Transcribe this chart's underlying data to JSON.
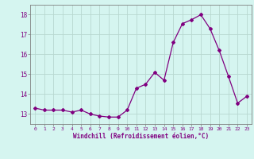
{
  "x": [
    0,
    1,
    2,
    3,
    4,
    5,
    6,
    7,
    8,
    9,
    10,
    11,
    12,
    13,
    14,
    15,
    16,
    17,
    18,
    19,
    20,
    21,
    22,
    23
  ],
  "y": [
    13.3,
    13.2,
    13.2,
    13.2,
    13.1,
    13.2,
    13.0,
    12.9,
    12.85,
    12.85,
    13.2,
    14.3,
    14.5,
    15.1,
    14.7,
    16.6,
    17.55,
    17.75,
    18.0,
    17.3,
    16.2,
    14.9,
    13.55,
    13.9
  ],
  "line_color": "#800080",
  "marker": "D",
  "marker_size": 2,
  "bg_color": "#d5f5f0",
  "grid_color": "#b8d8d0",
  "xlabel": "Windchill (Refroidissement éolien,°C)",
  "xlabel_color": "#800080",
  "tick_color": "#800080",
  "ylim": [
    12.5,
    18.5
  ],
  "xlim": [
    -0.5,
    23.5
  ],
  "yticks": [
    13,
    14,
    15,
    16,
    17,
    18
  ],
  "xticks": [
    0,
    1,
    2,
    3,
    4,
    5,
    6,
    7,
    8,
    9,
    10,
    11,
    12,
    13,
    14,
    15,
    16,
    17,
    18,
    19,
    20,
    21,
    22,
    23
  ]
}
